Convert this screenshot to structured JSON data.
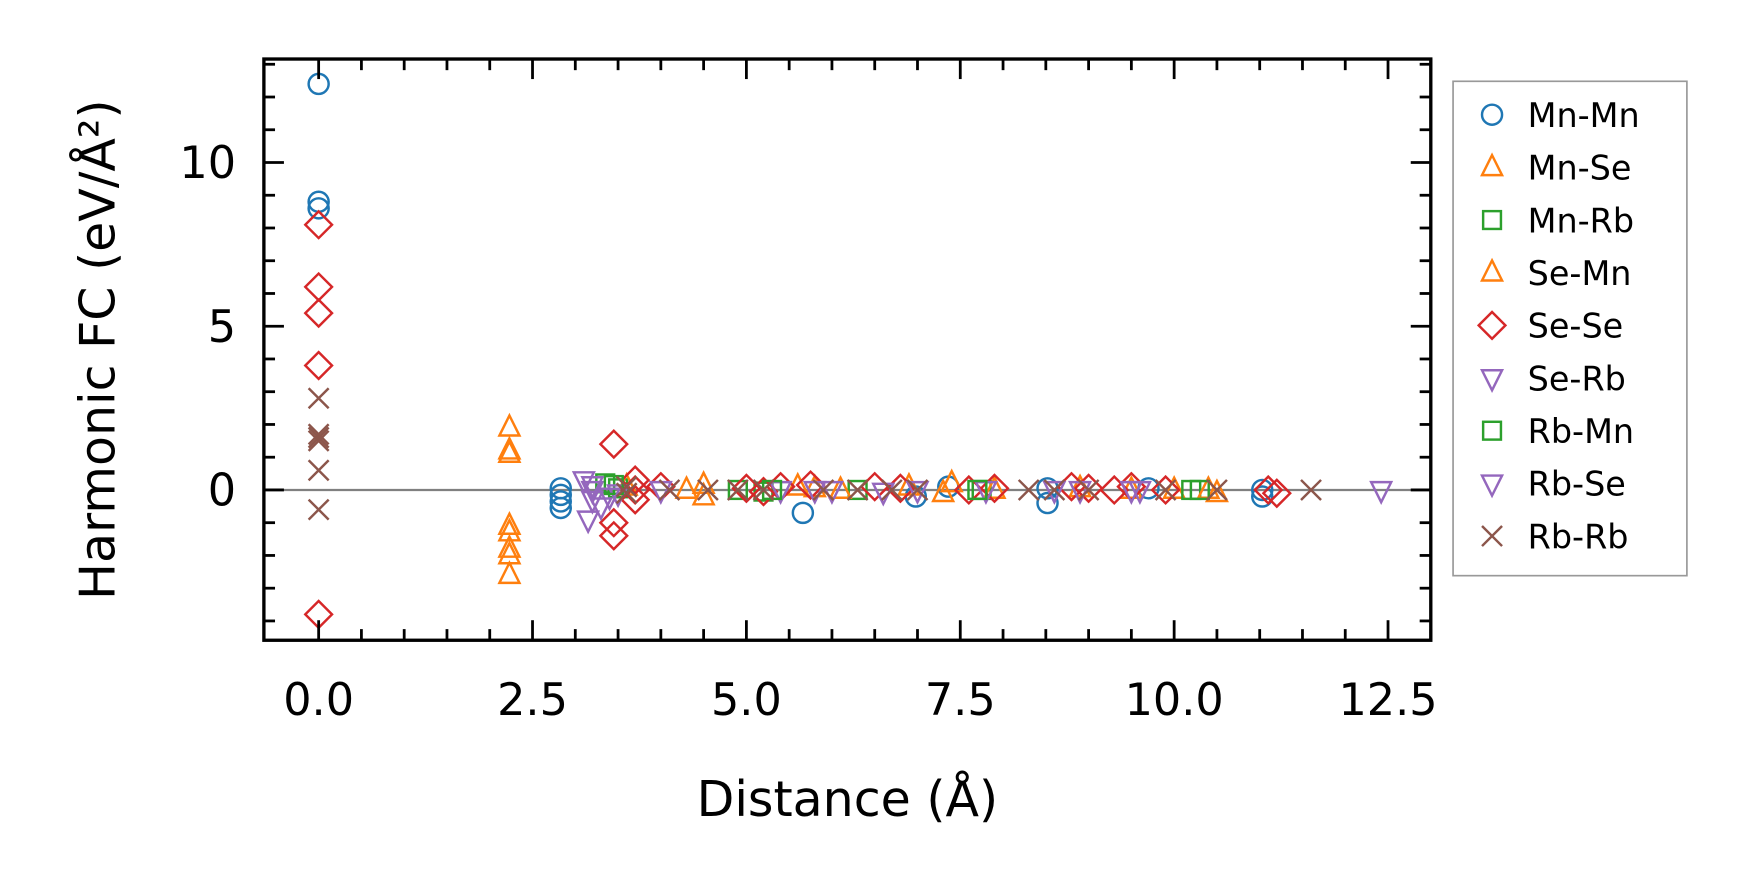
{
  "chart_data": {
    "type": "scatter",
    "title": "",
    "xlabel": "Distance (Å)",
    "ylabel": "Harmonic FC (eV/Å²)",
    "xlim": [
      -0.64,
      13.0
    ],
    "ylim": [
      -4.59,
      13.16
    ],
    "xticks": [
      0.0,
      2.5,
      5.0,
      7.5,
      10.0,
      12.5
    ],
    "xtick_labels": [
      "0.0",
      "2.5",
      "5.0",
      "7.5",
      "10.0",
      "12.5"
    ],
    "yticks": [
      0,
      5,
      10
    ],
    "ytick_labels": [
      "0",
      "5",
      "10"
    ],
    "zero_line": true,
    "grid": false,
    "legend_position": "right-outside",
    "series": [
      {
        "name": "Mn-Mn",
        "marker": "circle",
        "color": "#1f77b4",
        "points": [
          [
            0,
            12.4
          ],
          [
            0,
            8.8
          ],
          [
            0,
            8.6
          ],
          [
            2.83,
            0.05
          ],
          [
            2.83,
            -0.15
          ],
          [
            2.83,
            -0.35
          ],
          [
            2.83,
            -0.55
          ],
          [
            5.66,
            -0.7
          ],
          [
            6.98,
            -0.2
          ],
          [
            7.36,
            0.1
          ],
          [
            8.52,
            -0.4
          ],
          [
            8.52,
            0.05
          ],
          [
            9.7,
            0.05
          ],
          [
            11.03,
            -0.2
          ],
          [
            11.03,
            0.0
          ]
        ]
      },
      {
        "name": "Mn-Se",
        "marker": "triangle-up",
        "color": "#ff7f0e",
        "points": [
          [
            2.23,
            1.9
          ],
          [
            2.23,
            1.2
          ],
          [
            2.23,
            1.1
          ],
          [
            2.23,
            -1.1
          ],
          [
            2.23,
            -1.3
          ],
          [
            2.23,
            -1.8
          ],
          [
            2.23,
            -2.0
          ],
          [
            2.23,
            -2.6
          ],
          [
            4.5,
            -0.2
          ],
          [
            4.5,
            0.15
          ],
          [
            5.8,
            0.05
          ],
          [
            6.9,
            0.1
          ],
          [
            7.3,
            -0.1
          ],
          [
            7.4,
            0.2
          ],
          [
            8.9,
            0.05
          ],
          [
            9.5,
            0.0
          ],
          [
            10.0,
            0.0
          ],
          [
            10.5,
            -0.1
          ]
        ]
      },
      {
        "name": "Mn-Rb",
        "marker": "square",
        "color": "#2ca02c",
        "points": [
          [
            3.35,
            0.2
          ],
          [
            3.5,
            0.05
          ],
          [
            4.9,
            0.0
          ],
          [
            5.2,
            -0.05
          ],
          [
            6.3,
            0.0
          ],
          [
            7.75,
            0.0
          ],
          [
            10.2,
            0.0
          ]
        ]
      },
      {
        "name": "Se-Mn",
        "marker": "triangle-up",
        "color": "#ff7f0e",
        "points": [
          [
            3.6,
            0.1
          ],
          [
            4.3,
            0.0
          ],
          [
            5.6,
            0.1
          ],
          [
            6.1,
            0.0
          ],
          [
            7.9,
            0.0
          ],
          [
            10.4,
            0.0
          ]
        ]
      },
      {
        "name": "Se-Se",
        "marker": "diamond",
        "color": "#d62728",
        "points": [
          [
            0,
            8.1
          ],
          [
            0,
            6.2
          ],
          [
            0,
            5.4
          ],
          [
            0,
            3.8
          ],
          [
            0,
            -3.8
          ],
          [
            3.45,
            1.4
          ],
          [
            3.45,
            -1.0
          ],
          [
            3.45,
            -1.4
          ],
          [
            3.7,
            0.3
          ],
          [
            3.7,
            0.0
          ],
          [
            3.7,
            -0.3
          ],
          [
            4.0,
            0.1
          ],
          [
            5.0,
            0.05
          ],
          [
            5.2,
            -0.05
          ],
          [
            5.4,
            0.1
          ],
          [
            5.75,
            0.15
          ],
          [
            6.5,
            0.1
          ],
          [
            6.8,
            0.05
          ],
          [
            7.6,
            0.0
          ],
          [
            7.9,
            0.05
          ],
          [
            8.8,
            0.1
          ],
          [
            9.0,
            0.05
          ],
          [
            9.3,
            0.0
          ],
          [
            9.5,
            0.1
          ],
          [
            9.9,
            0.0
          ],
          [
            11.1,
            0.0
          ],
          [
            11.2,
            -0.1
          ]
        ]
      },
      {
        "name": "Se-Rb",
        "marker": "triangle-down",
        "color": "#9467bd",
        "points": [
          [
            3.1,
            0.3
          ],
          [
            3.2,
            0.0
          ],
          [
            3.2,
            -0.3
          ],
          [
            3.3,
            -0.5
          ],
          [
            3.15,
            -0.9
          ],
          [
            3.5,
            -0.1
          ],
          [
            5.4,
            0.0
          ],
          [
            6.0,
            0.0
          ],
          [
            6.6,
            -0.05
          ],
          [
            7.8,
            0.0
          ],
          [
            8.9,
            0.0
          ],
          [
            9.6,
            0.0
          ]
        ]
      },
      {
        "name": "Rb-Mn",
        "marker": "square",
        "color": "#2ca02c",
        "points": [
          [
            3.45,
            0.15
          ],
          [
            5.3,
            0.0
          ],
          [
            7.7,
            0.0
          ],
          [
            10.3,
            0.0
          ]
        ]
      },
      {
        "name": "Rb-Se",
        "marker": "triangle-down",
        "color": "#9467bd",
        "points": [
          [
            3.2,
            0.15
          ],
          [
            3.4,
            -0.2
          ],
          [
            4.0,
            0.0
          ],
          [
            5.8,
            0.0
          ],
          [
            7.0,
            0.0
          ],
          [
            8.6,
            0.0
          ],
          [
            9.5,
            0.0
          ],
          [
            12.42,
            0.0
          ]
        ]
      },
      {
        "name": "Rb-Rb",
        "marker": "x",
        "color": "#8c564b",
        "points": [
          [
            0,
            2.8
          ],
          [
            0,
            1.7
          ],
          [
            0,
            1.6
          ],
          [
            0,
            1.5
          ],
          [
            0,
            0.6
          ],
          [
            0,
            -0.6
          ],
          [
            3.6,
            0.1
          ],
          [
            3.6,
            -0.1
          ],
          [
            4.1,
            0.0
          ],
          [
            4.55,
            0.0
          ],
          [
            4.9,
            0.0
          ],
          [
            5.2,
            0.0
          ],
          [
            5.9,
            0.0
          ],
          [
            6.3,
            0.0
          ],
          [
            6.7,
            0.0
          ],
          [
            7.0,
            0.0
          ],
          [
            8.3,
            0.0
          ],
          [
            8.6,
            0.0
          ],
          [
            9.0,
            0.0
          ],
          [
            9.9,
            0.0
          ],
          [
            10.5,
            0.0
          ],
          [
            11.6,
            0.0
          ]
        ]
      }
    ]
  }
}
